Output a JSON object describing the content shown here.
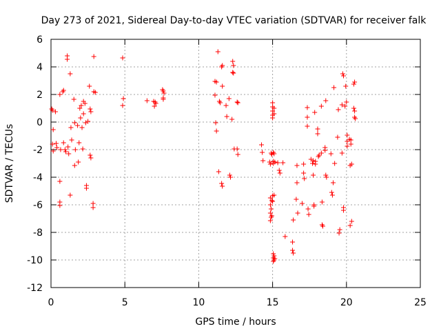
{
  "chart_data": {
    "type": "scatter",
    "title": "Day 273 of 2021, Sidereal Day-to-day VTEC variation (SDTVAR) for receiver falk",
    "xlabel": "GPS time / hours",
    "ylabel": "SDTVAR / TECUs",
    "xlim": [
      0,
      25
    ],
    "ylim": [
      -12,
      6
    ],
    "xticks": [
      0,
      5,
      10,
      15,
      20,
      25
    ],
    "yticks": [
      -12,
      -10,
      -8,
      -6,
      -4,
      -2,
      0,
      2,
      4,
      6
    ],
    "grid": true,
    "marker": "plus",
    "color": "#ff0000",
    "series": [
      {
        "name": "SDTVAR",
        "points": [
          [
            0.05,
            0.95
          ],
          [
            0.1,
            0.85
          ],
          [
            0.15,
            -0.55
          ],
          [
            0.1,
            -1.6
          ],
          [
            0.15,
            -2.1
          ],
          [
            0.35,
            -1.55
          ],
          [
            0.3,
            0.75
          ],
          [
            0.4,
            -1.85
          ],
          [
            0.6,
            2.0
          ],
          [
            0.6,
            -4.3
          ],
          [
            0.6,
            -5.8
          ],
          [
            0.6,
            -6.05
          ],
          [
            0.65,
            -2.0
          ],
          [
            0.8,
            2.2
          ],
          [
            0.85,
            2.3
          ],
          [
            0.85,
            -1.5
          ],
          [
            0.95,
            -2.0
          ],
          [
            1.0,
            -2.15
          ],
          [
            1.1,
            4.8
          ],
          [
            1.1,
            4.55
          ],
          [
            1.15,
            -1.8
          ],
          [
            1.2,
            -2.3
          ],
          [
            1.3,
            3.5
          ],
          [
            1.3,
            -5.3
          ],
          [
            1.35,
            -0.4
          ],
          [
            1.4,
            -1.3
          ],
          [
            1.55,
            1.65
          ],
          [
            1.6,
            -3.15
          ],
          [
            1.6,
            -0.05
          ],
          [
            1.65,
            -2.0
          ],
          [
            1.8,
            -0.25
          ],
          [
            1.85,
            -2.9
          ],
          [
            1.9,
            -1.5
          ],
          [
            1.95,
            1.0
          ],
          [
            2.0,
            0.3
          ],
          [
            2.05,
            1.2
          ],
          [
            2.1,
            -0.4
          ],
          [
            2.15,
            -1.95
          ],
          [
            2.2,
            0.6
          ],
          [
            2.2,
            1.5
          ],
          [
            2.3,
            1.35
          ],
          [
            2.35,
            -0.05
          ],
          [
            2.4,
            -4.6
          ],
          [
            2.4,
            -4.8
          ],
          [
            2.5,
            0.05
          ],
          [
            2.6,
            2.6
          ],
          [
            2.65,
            0.95
          ],
          [
            2.7,
            0.75
          ],
          [
            2.65,
            -2.4
          ],
          [
            2.7,
            -2.6
          ],
          [
            2.85,
            -5.9
          ],
          [
            2.85,
            -6.2
          ],
          [
            2.9,
            2.2
          ],
          [
            2.9,
            4.75
          ],
          [
            3.0,
            2.15
          ],
          [
            4.85,
            4.65
          ],
          [
            4.9,
            1.7
          ],
          [
            4.85,
            1.2
          ],
          [
            6.5,
            1.55
          ],
          [
            6.95,
            1.5
          ],
          [
            7.0,
            1.15
          ],
          [
            7.05,
            1.45
          ],
          [
            7.1,
            1.35
          ],
          [
            7.55,
            2.35
          ],
          [
            7.6,
            2.25
          ],
          [
            7.65,
            2.1
          ],
          [
            7.6,
            1.75
          ],
          [
            7.6,
            1.65
          ],
          [
            11.1,
            2.95
          ],
          [
            11.2,
            2.9
          ],
          [
            11.1,
            1.95
          ],
          [
            11.15,
            -0.05
          ],
          [
            11.2,
            -0.65
          ],
          [
            11.3,
            5.1
          ],
          [
            11.4,
            1.5
          ],
          [
            11.35,
            -3.6
          ],
          [
            11.45,
            1.4
          ],
          [
            11.55,
            4.0
          ],
          [
            11.6,
            4.1
          ],
          [
            11.6,
            2.6
          ],
          [
            11.55,
            -4.45
          ],
          [
            11.6,
            -4.65
          ],
          [
            11.85,
            1.2
          ],
          [
            11.9,
            0.4
          ],
          [
            12.05,
            1.7
          ],
          [
            12.1,
            -3.85
          ],
          [
            12.15,
            -4.0
          ],
          [
            12.25,
            0.2
          ],
          [
            12.3,
            4.4
          ],
          [
            12.35,
            4.1
          ],
          [
            12.3,
            3.6
          ],
          [
            12.35,
            3.55
          ],
          [
            12.4,
            -1.95
          ],
          [
            12.6,
            1.45
          ],
          [
            12.65,
            1.4
          ],
          [
            12.6,
            -1.95
          ],
          [
            12.65,
            -2.35
          ],
          [
            14.25,
            -1.65
          ],
          [
            14.3,
            -2.2
          ],
          [
            14.35,
            -2.8
          ],
          [
            14.8,
            -2.9
          ],
          [
            14.85,
            -3.05
          ],
          [
            14.9,
            -2.25
          ],
          [
            14.95,
            -2.35
          ],
          [
            14.85,
            -5.5
          ],
          [
            14.85,
            -6.0
          ],
          [
            14.85,
            -6.6
          ],
          [
            14.85,
            -7.15
          ],
          [
            14.9,
            -6.3
          ],
          [
            14.9,
            -6.9
          ],
          [
            14.95,
            -5.7
          ],
          [
            14.95,
            -6.8
          ],
          [
            15.0,
            -5.35
          ],
          [
            15.0,
            -5.75
          ],
          [
            15.0,
            1.4
          ],
          [
            15.0,
            1.1
          ],
          [
            15.0,
            0.8
          ],
          [
            15.0,
            0.5
          ],
          [
            15.0,
            0.3
          ],
          [
            15.05,
            -2.2
          ],
          [
            15.05,
            -2.85
          ],
          [
            15.05,
            -3.0
          ],
          [
            15.05,
            -9.55
          ],
          [
            15.05,
            -9.85
          ],
          [
            15.05,
            -10.1
          ],
          [
            15.1,
            1.0
          ],
          [
            15.1,
            0.6
          ],
          [
            15.1,
            -2.3
          ],
          [
            15.1,
            -5.3
          ],
          [
            15.1,
            -9.7
          ],
          [
            15.1,
            -10.0
          ],
          [
            15.15,
            -2.9
          ],
          [
            15.15,
            -9.9
          ],
          [
            15.35,
            -2.95
          ],
          [
            15.45,
            -3.5
          ],
          [
            15.5,
            -3.7
          ],
          [
            15.7,
            -2.95
          ],
          [
            15.85,
            -8.3
          ],
          [
            16.35,
            -8.7
          ],
          [
            16.35,
            -9.3
          ],
          [
            16.4,
            -9.5
          ],
          [
            16.4,
            -7.1
          ],
          [
            16.6,
            -5.6
          ],
          [
            16.65,
            -4.4
          ],
          [
            16.65,
            -3.15
          ],
          [
            16.7,
            -6.6
          ],
          [
            17.0,
            -5.9
          ],
          [
            17.1,
            -3.05
          ],
          [
            17.1,
            -3.7
          ],
          [
            17.15,
            -4.1
          ],
          [
            17.35,
            1.05
          ],
          [
            17.35,
            0.35
          ],
          [
            17.35,
            -0.3
          ],
          [
            17.4,
            -6.3
          ],
          [
            17.45,
            -6.7
          ],
          [
            17.6,
            -2.7
          ],
          [
            17.7,
            -3.0
          ],
          [
            17.75,
            -2.8
          ],
          [
            17.75,
            -3.85
          ],
          [
            17.8,
            -6.1
          ],
          [
            17.8,
            -6.0
          ],
          [
            17.85,
            0.7
          ],
          [
            17.9,
            -3.05
          ],
          [
            17.9,
            -2.85
          ],
          [
            18.05,
            -0.5
          ],
          [
            18.05,
            -0.85
          ],
          [
            18.1,
            -2.5
          ],
          [
            18.15,
            -2.4
          ],
          [
            18.3,
            1.15
          ],
          [
            18.3,
            -2.25
          ],
          [
            18.35,
            -5.8
          ],
          [
            18.35,
            -7.45
          ],
          [
            18.4,
            -7.55
          ],
          [
            18.55,
            -2.05
          ],
          [
            18.55,
            -1.85
          ],
          [
            18.6,
            1.55
          ],
          [
            18.6,
            -3.85
          ],
          [
            18.65,
            -4.0
          ],
          [
            18.95,
            -2.3
          ],
          [
            19.0,
            -5.1
          ],
          [
            19.05,
            -5.3
          ],
          [
            19.1,
            -4.4
          ],
          [
            19.15,
            2.5
          ],
          [
            19.2,
            -3.0
          ],
          [
            19.4,
            -1.1
          ],
          [
            19.45,
            0.9
          ],
          [
            19.5,
            -8.05
          ],
          [
            19.55,
            -7.8
          ],
          [
            19.7,
            1.25
          ],
          [
            19.7,
            -2.25
          ],
          [
            19.75,
            3.5
          ],
          [
            19.8,
            3.35
          ],
          [
            19.8,
            -6.2
          ],
          [
            19.8,
            -6.4
          ],
          [
            19.9,
            1.15
          ],
          [
            19.95,
            2.6
          ],
          [
            20.0,
            1.45
          ],
          [
            20.05,
            -1.4
          ],
          [
            20.05,
            -1.75
          ],
          [
            20.05,
            -0.95
          ],
          [
            20.2,
            -1.25
          ],
          [
            20.25,
            -3.15
          ],
          [
            20.25,
            -7.5
          ],
          [
            20.3,
            -1.6
          ],
          [
            20.3,
            -1.3
          ],
          [
            20.35,
            -7.2
          ],
          [
            20.35,
            -3.05
          ],
          [
            20.5,
            2.75
          ],
          [
            20.55,
            2.9
          ],
          [
            20.5,
            1.0
          ],
          [
            20.55,
            0.8
          ],
          [
            20.55,
            0.35
          ],
          [
            20.6,
            0.25
          ]
        ]
      }
    ]
  }
}
